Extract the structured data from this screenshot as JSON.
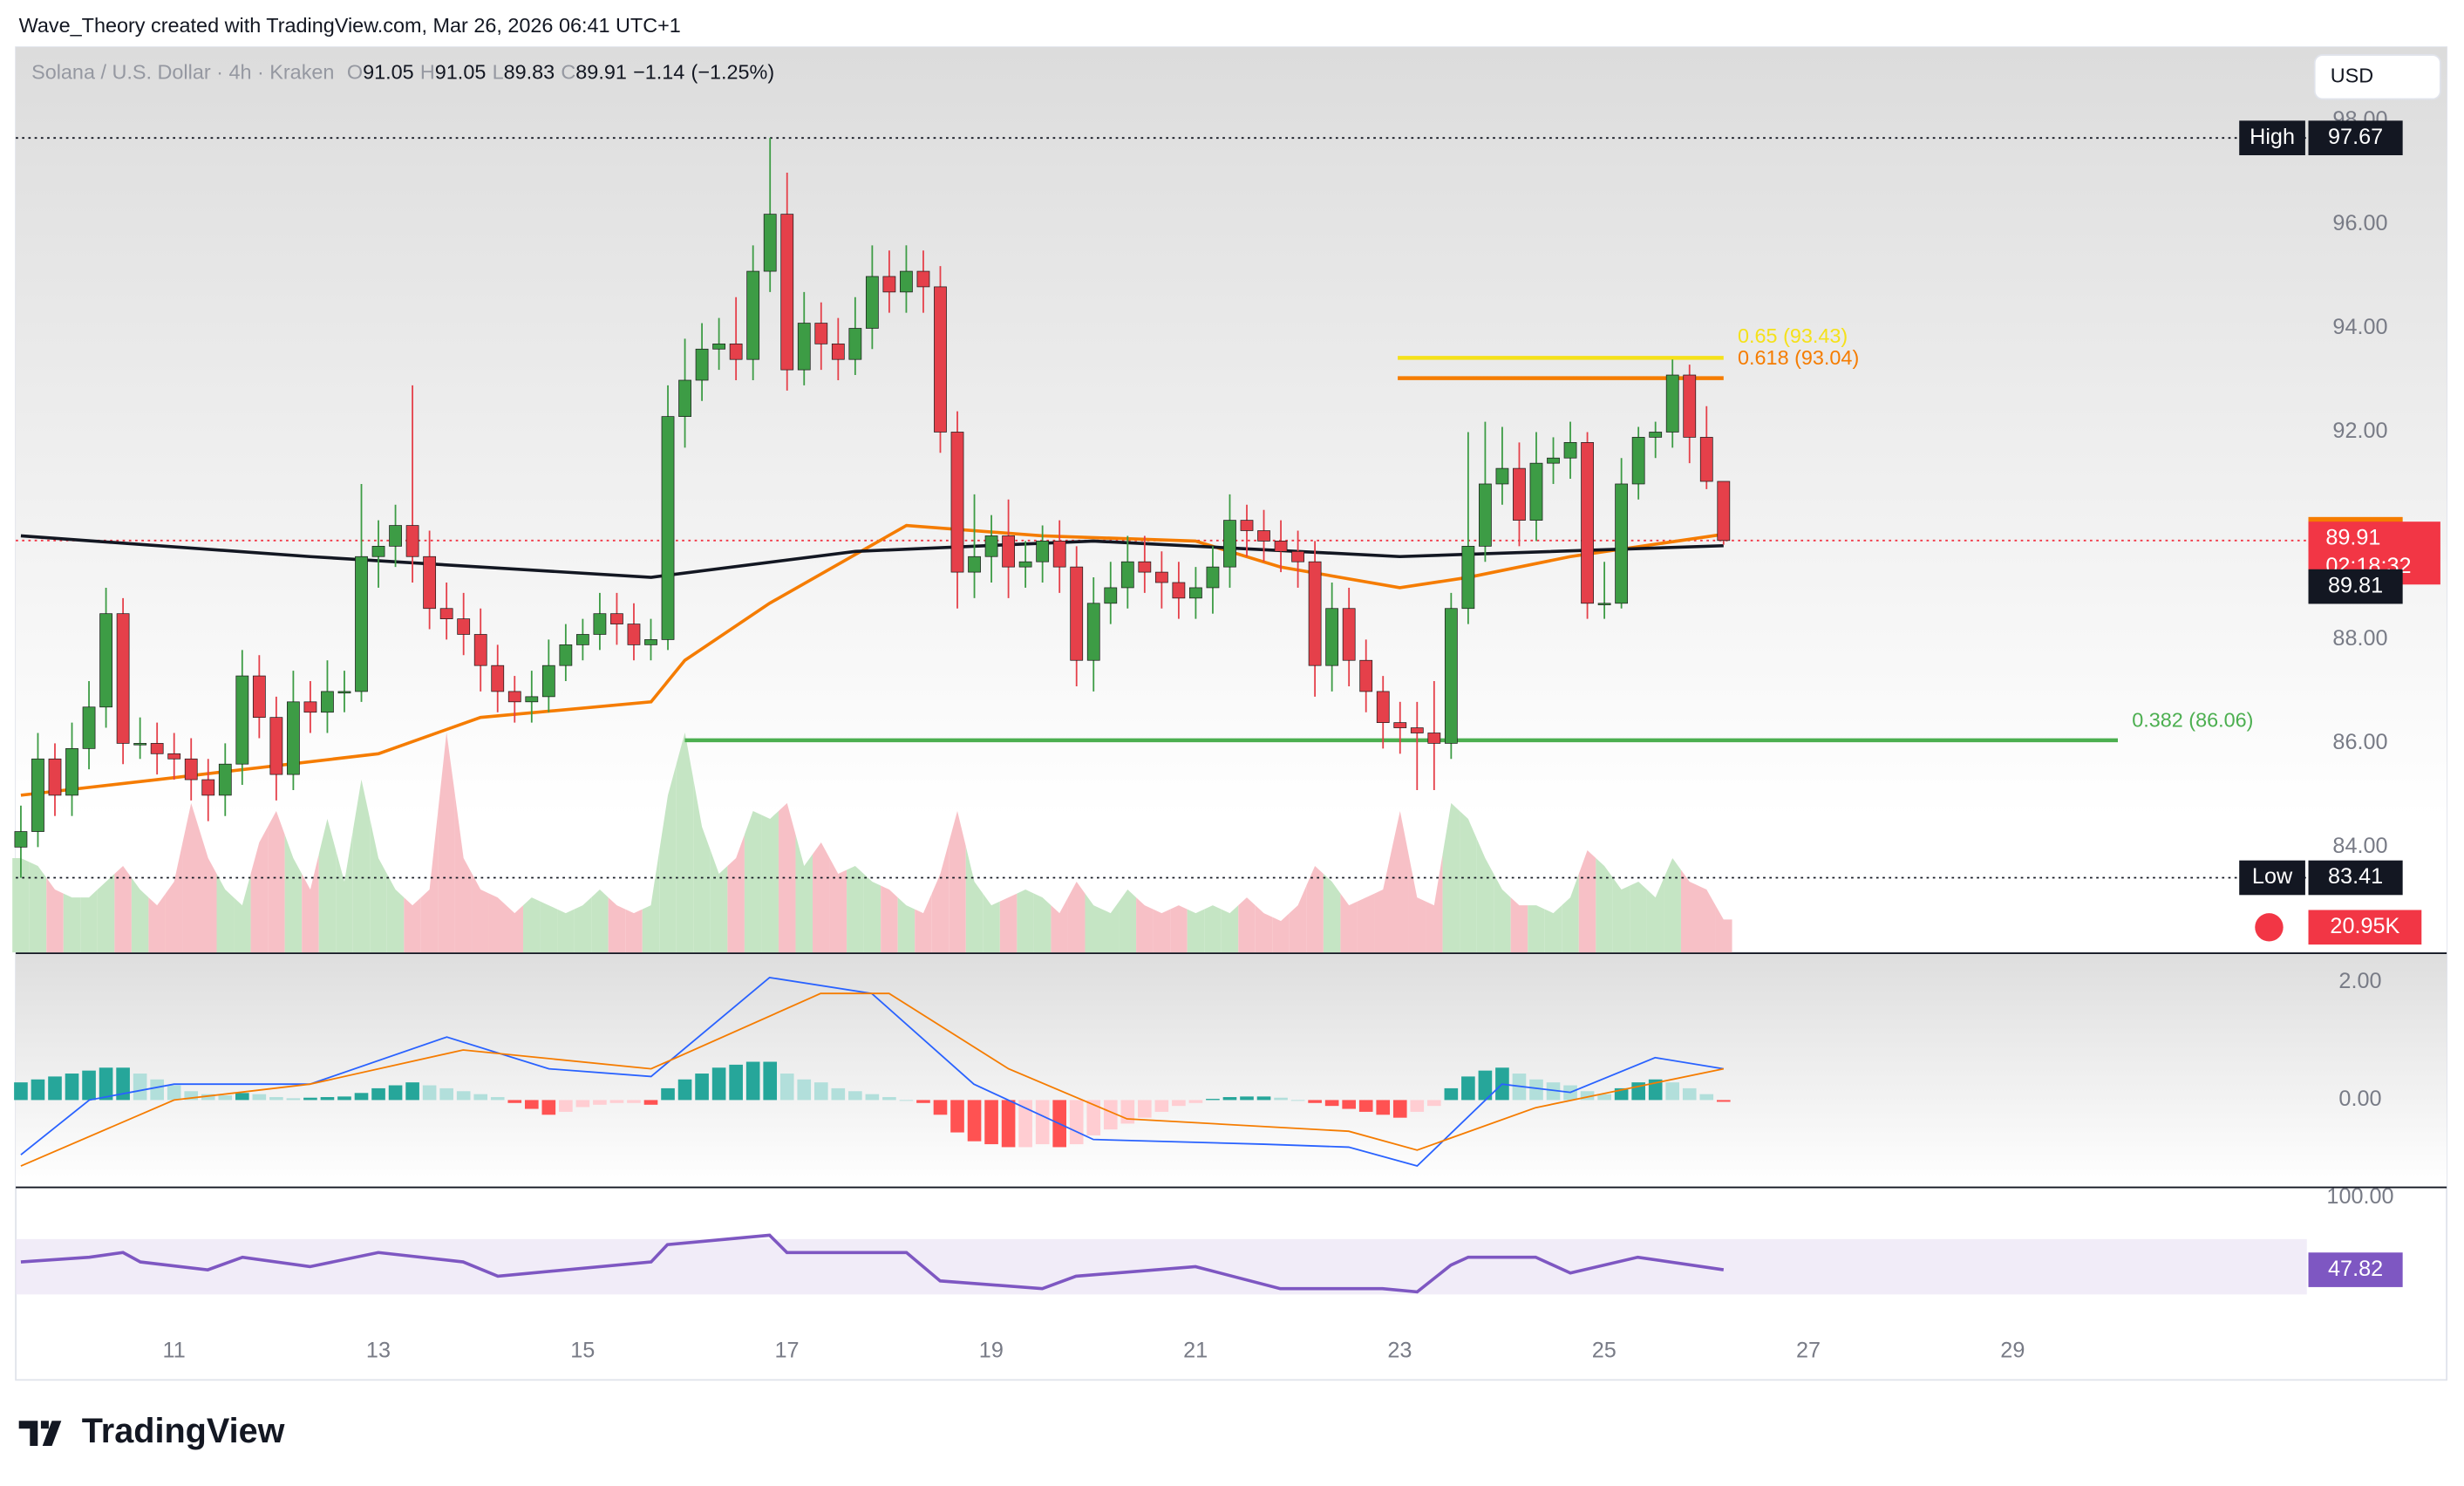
{
  "header": {
    "attribution": "Wave_Theory created with TradingView.com, Mar 26, 2026 06:41 UTC+1",
    "brand": "TradingView",
    "currency": "USD"
  },
  "chart_data": {
    "type": "candlestick",
    "symbol": "Solana / U.S. Dollar · 4h · Kraken",
    "ohlc_keys": [
      "O",
      "H",
      "L",
      "C"
    ],
    "change": {
      "value": -1.14,
      "label": "−1.14"
    },
    "change_pct": {
      "value": -1.25,
      "label": "(−1.25%)"
    },
    "x_start": 9.5,
    "candle_interval_days": 0.1667,
    "xlim": [
      9.45,
      31.88
    ],
    "xticks": [
      11,
      13,
      15,
      17,
      19,
      21,
      23,
      25,
      27,
      29
    ],
    "ylim": [
      81.97,
      99.42
    ],
    "yticks": [
      {
        "value": 98,
        "label": "98.00"
      },
      {
        "value": 96,
        "label": "96.00"
      },
      {
        "value": 94,
        "label": "94.00"
      },
      {
        "value": 92,
        "label": "92.00"
      },
      {
        "value": 90,
        "label": "90.00"
      },
      {
        "value": 88,
        "label": "88.00"
      },
      {
        "value": 86,
        "label": "86.00"
      },
      {
        "value": 84,
        "label": "84.00"
      }
    ],
    "up_color": "#3d9c45",
    "down_color": "#e5404a",
    "open": [
      84.0,
      84.3,
      85.7,
      85.0,
      85.9,
      86.7,
      88.5,
      86.0,
      86.0,
      85.8,
      85.7,
      85.3,
      85.0,
      85.6,
      87.3,
      86.5,
      85.4,
      86.8,
      86.6,
      87.0,
      87.0,
      89.6,
      89.8,
      90.2,
      89.6,
      88.6,
      88.4,
      88.1,
      87.5,
      87.0,
      86.8,
      86.9,
      87.5,
      87.9,
      88.1,
      88.5,
      88.3,
      87.9,
      88.0,
      92.3,
      93.0,
      93.6,
      93.7,
      93.4,
      95.1,
      96.2,
      93.2,
      94.1,
      93.7,
      93.4,
      94.0,
      95.0,
      94.7,
      95.1,
      94.8,
      92.0,
      89.3,
      89.6,
      90.0,
      89.4,
      89.5,
      89.9,
      89.4,
      87.6,
      88.7,
      89.0,
      89.5,
      89.3,
      89.1,
      88.8,
      89.0,
      89.4,
      90.3,
      90.1,
      89.9,
      89.7,
      89.5,
      87.5,
      88.6,
      87.6,
      87.0,
      86.4,
      86.3,
      86.2,
      86.0,
      88.6,
      89.8,
      91.0,
      91.3,
      90.3,
      91.4,
      91.5,
      91.8,
      88.7,
      88.7,
      91.0,
      91.9,
      92.0,
      93.1,
      91.9,
      91.05
    ],
    "high": [
      84.8,
      86.2,
      86.0,
      86.4,
      87.2,
      89.0,
      88.8,
      86.5,
      86.4,
      86.2,
      86.1,
      85.7,
      86.0,
      87.8,
      87.7,
      86.9,
      87.4,
      87.2,
      87.6,
      87.4,
      91.0,
      90.3,
      90.6,
      92.9,
      90.1,
      89.1,
      88.9,
      88.6,
      87.9,
      87.3,
      87.4,
      88.0,
      88.3,
      88.4,
      88.9,
      88.9,
      88.7,
      88.4,
      92.9,
      93.8,
      94.1,
      94.2,
      94.6,
      95.6,
      97.67,
      97.0,
      94.7,
      94.5,
      94.2,
      94.6,
      95.6,
      95.5,
      95.6,
      95.5,
      95.2,
      92.4,
      90.8,
      90.4,
      90.7,
      89.9,
      90.2,
      90.3,
      89.8,
      89.2,
      89.5,
      90.0,
      90.0,
      89.7,
      89.5,
      89.4,
      89.8,
      90.8,
      90.6,
      90.5,
      90.3,
      90.1,
      89.9,
      89.1,
      89.0,
      88.0,
      87.3,
      86.8,
      86.8,
      87.2,
      88.9,
      92.0,
      92.2,
      92.1,
      91.8,
      92.0,
      91.9,
      92.2,
      92.0,
      89.5,
      91.5,
      92.1,
      92.2,
      93.4,
      93.3,
      92.5,
      91.05
    ],
    "low": [
      83.41,
      84.0,
      84.6,
      84.6,
      85.5,
      86.3,
      85.6,
      85.7,
      85.4,
      85.3,
      84.9,
      84.5,
      84.6,
      85.2,
      86.1,
      84.9,
      85.1,
      86.2,
      86.2,
      86.6,
      86.8,
      89.0,
      89.4,
      89.1,
      88.2,
      88.0,
      87.7,
      87.0,
      86.6,
      86.4,
      86.4,
      86.6,
      87.2,
      87.6,
      87.8,
      87.9,
      87.6,
      87.6,
      87.8,
      91.7,
      92.6,
      93.2,
      93.0,
      93.0,
      94.7,
      92.8,
      92.9,
      93.2,
      93.0,
      93.1,
      93.6,
      94.3,
      94.3,
      94.3,
      91.6,
      88.6,
      88.8,
      89.1,
      88.8,
      89.0,
      89.1,
      88.9,
      87.1,
      87.0,
      88.3,
      88.6,
      88.9,
      88.6,
      88.4,
      88.4,
      88.5,
      89.0,
      89.6,
      89.5,
      89.3,
      89.0,
      86.9,
      87.0,
      87.1,
      86.6,
      85.9,
      85.8,
      85.1,
      85.1,
      85.7,
      88.3,
      89.5,
      90.6,
      89.8,
      89.9,
      91.0,
      91.1,
      88.4,
      88.4,
      88.6,
      90.7,
      91.5,
      91.7,
      91.4,
      90.9,
      89.83
    ],
    "close": [
      84.3,
      85.7,
      85.0,
      85.9,
      86.7,
      88.5,
      86.0,
      86.0,
      85.8,
      85.7,
      85.3,
      85.0,
      85.6,
      87.3,
      86.5,
      85.4,
      86.8,
      86.6,
      87.0,
      87.0,
      89.6,
      89.8,
      90.2,
      89.6,
      88.6,
      88.4,
      88.1,
      87.5,
      87.0,
      86.8,
      86.9,
      87.5,
      87.9,
      88.1,
      88.5,
      88.3,
      87.9,
      88.0,
      92.3,
      93.0,
      93.6,
      93.7,
      93.4,
      95.1,
      96.2,
      93.2,
      94.1,
      93.7,
      93.4,
      94.0,
      95.0,
      94.7,
      95.1,
      94.8,
      92.0,
      89.3,
      89.6,
      90.0,
      89.4,
      89.5,
      89.9,
      89.4,
      87.6,
      88.7,
      89.0,
      89.5,
      89.3,
      89.1,
      88.8,
      89.0,
      89.4,
      90.3,
      90.1,
      89.9,
      89.7,
      89.5,
      87.5,
      88.6,
      87.6,
      87.0,
      86.4,
      86.3,
      86.2,
      86.0,
      88.6,
      89.8,
      91.0,
      91.3,
      90.3,
      91.4,
      91.5,
      91.8,
      88.7,
      88.7,
      91.0,
      91.9,
      92.0,
      93.1,
      91.9,
      91.05,
      89.91
    ],
    "last_price_color": "#f23645",
    "countdown": "02:18:32",
    "moving_averages": [
      {
        "color": "#f57c00",
        "x": [
          9.5,
          10.83,
          13.0,
          14.0,
          15.67,
          16.0,
          16.83,
          18.17,
          19.5,
          21.0,
          21.83,
          23.0,
          23.67,
          24.67,
          26.17
        ],
        "values": [
          85.0,
          85.3,
          85.8,
          86.5,
          86.8,
          87.6,
          88.7,
          90.2,
          90.0,
          89.9,
          89.4,
          89.0,
          89.2,
          89.6,
          90.03
        ]
      },
      {
        "color": "#131722",
        "x": [
          9.5,
          12.33,
          15.67,
          17.67,
          20.0,
          23.0,
          26.17
        ],
        "values": [
          90.0,
          89.6,
          89.2,
          89.7,
          89.9,
          89.6,
          89.81
        ]
      }
    ],
    "high_marker": {
      "label": "High",
      "index": 44
    },
    "low_marker": {
      "label": "Low",
      "index": 0
    },
    "fib_levels": [
      {
        "label": "0.65 (93.43)",
        "value": 93.43,
        "color": "#f5e11a",
        "x": [
          22.98,
          26.17
        ]
      },
      {
        "label": "0.618 (93.04)",
        "value": 93.04,
        "color": "#f57c00",
        "x": [
          22.98,
          26.17
        ]
      },
      {
        "label": "0.382 (86.06)",
        "value": 86.06,
        "color": "#4caf50",
        "x": [
          16.0,
          30.03
        ]
      }
    ],
    "volume": {
      "ylim": [
        0,
        576
      ],
      "last_label": "20.95K",
      "up_color": "#c5e5c4",
      "down_color": "#f7c0c6",
      "values": [
        60,
        55,
        40,
        35,
        35,
        45,
        55,
        40,
        30,
        45,
        95,
        60,
        40,
        30,
        70,
        90,
        60,
        40,
        85,
        45,
        110,
        60,
        40,
        30,
        40,
        140,
        60,
        40,
        35,
        25,
        35,
        30,
        25,
        30,
        40,
        30,
        25,
        30,
        100,
        140,
        80,
        50,
        60,
        90,
        85,
        95,
        55,
        70,
        50,
        55,
        45,
        40,
        30,
        25,
        50,
        90,
        45,
        30,
        35,
        40,
        35,
        25,
        45,
        30,
        25,
        40,
        30,
        25,
        30,
        25,
        30,
        25,
        35,
        25,
        20,
        30,
        55,
        45,
        30,
        35,
        40,
        90,
        35,
        30,
        95,
        85,
        60,
        40,
        30,
        30,
        25,
        35,
        65,
        55,
        40,
        45,
        35,
        60,
        45,
        40,
        20.95
      ]
    },
    "macd": {
      "ylim": [
        -1.47,
        2.4
      ],
      "yticks": [
        {
          "value": 2,
          "label": "2.00"
        },
        {
          "value": 0,
          "label": "0.00"
        }
      ],
      "histogram": [
        0.3,
        0.35,
        0.4,
        0.45,
        0.5,
        0.55,
        0.55,
        0.45,
        0.35,
        0.25,
        0.15,
        0.1,
        0.08,
        0.12,
        0.1,
        0.05,
        0.03,
        0.04,
        0.05,
        0.06,
        0.12,
        0.2,
        0.25,
        0.3,
        0.25,
        0.2,
        0.15,
        0.1,
        0.05,
        -0.05,
        -0.15,
        -0.25,
        -0.2,
        -0.12,
        -0.08,
        -0.05,
        -0.05,
        -0.08,
        0.2,
        0.35,
        0.45,
        0.55,
        0.6,
        0.65,
        0.65,
        0.45,
        0.35,
        0.3,
        0.2,
        0.15,
        0.1,
        0.05,
        0.0,
        -0.05,
        -0.25,
        -0.55,
        -0.7,
        -0.75,
        -0.8,
        -0.8,
        -0.75,
        -0.8,
        -0.75,
        -0.6,
        -0.5,
        -0.4,
        -0.3,
        -0.2,
        -0.1,
        -0.05,
        0.02,
        0.05,
        0.06,
        0.06,
        0.04,
        0.0,
        -0.05,
        -0.1,
        -0.15,
        -0.2,
        -0.25,
        -0.3,
        -0.2,
        -0.1,
        0.2,
        0.4,
        0.5,
        0.55,
        0.45,
        0.35,
        0.3,
        0.25,
        0.15,
        0.1,
        0.2,
        0.3,
        0.35,
        0.3,
        0.2,
        0.1,
        -0.03
      ],
      "lines": [
        {
          "color": "#2962ff",
          "x": [
            9.5,
            10.17,
            11.0,
            12.33,
            13.67,
            14.67,
            15.67,
            16.83,
            17.83,
            18.83,
            20.0,
            21.67,
            22.5,
            23.17,
            24.0,
            24.67,
            25.5,
            26.17
          ],
          "values": [
            -0.93,
            0,
            0.27,
            0.27,
            1.07,
            0.53,
            0.4,
            2.08,
            1.81,
            0.27,
            -0.67,
            -0.75,
            -0.8,
            -1.12,
            0.27,
            0.13,
            0.72,
            0.53
          ]
        },
        {
          "color": "#f57c00",
          "x": [
            9.5,
            11.0,
            12.33,
            13.83,
            15.67,
            17.33,
            18.0,
            19.17,
            20.33,
            22.5,
            23.17,
            24.33,
            26.17
          ],
          "values": [
            -1.12,
            0,
            0.27,
            0.85,
            0.53,
            1.81,
            1.81,
            0.53,
            -0.32,
            -0.53,
            -0.85,
            -0.13,
            0.53
          ]
        }
      ]
    },
    "rsi": {
      "ylim": [
        -31.7,
        104.5
      ],
      "yticks": [
        {
          "value": 100,
          "label": "100.00"
        }
      ],
      "band": [
        30,
        70
      ],
      "color": "#7e57c2",
      "x": [
        9.5,
        10.17,
        10.5,
        10.67,
        11.33,
        11.67,
        12.33,
        13.0,
        13.83,
        14.17,
        15.67,
        15.83,
        16.83,
        17.0,
        18.17,
        18.5,
        19.5,
        19.83,
        21.0,
        21.83,
        22.83,
        23.17,
        23.5,
        23.67,
        24.33,
        24.67,
        25.33,
        26.17
      ],
      "values": [
        53.5,
        56.9,
        60.3,
        53.5,
        47.8,
        56.9,
        50.1,
        60.3,
        53.5,
        43.2,
        53.5,
        66.0,
        72.8,
        60.3,
        60.3,
        39.8,
        34.2,
        43.2,
        50.1,
        34.2,
        34.2,
        31.9,
        51.2,
        56.9,
        56.9,
        45.5,
        56.9,
        47.82
      ]
    }
  }
}
